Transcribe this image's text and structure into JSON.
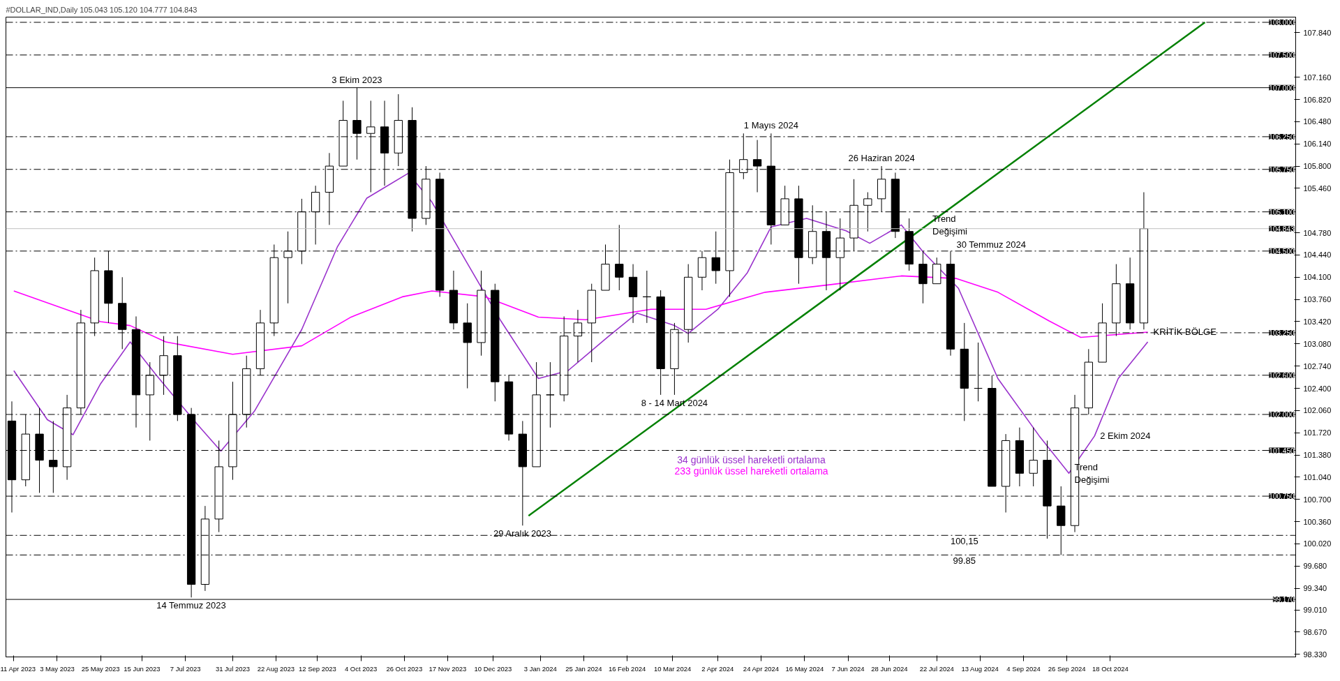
{
  "chart_data": {
    "type": "candlestick",
    "title": "#DOLLAR_IND,Daily  105.043 105.120 104.777 104.843",
    "xlim": [
      "2023-04-07",
      "2025-01-20"
    ],
    "ylim": [
      98.29,
      108.08
    ],
    "xticks": [
      {
        "value": "2023-04-11",
        "label": "11 Apr 2023"
      },
      {
        "value": "2023-05-03",
        "label": "3 May 2023"
      },
      {
        "value": "2023-05-25",
        "label": "25 May 2023"
      },
      {
        "value": "2023-06-15",
        "label": "15 Jun 2023"
      },
      {
        "value": "2023-07-07",
        "label": "7 Jul 2023"
      },
      {
        "value": "2023-07-31",
        "label": "31 Jul 2023"
      },
      {
        "value": "2023-08-22",
        "label": "22 Aug 2023"
      },
      {
        "value": "2023-09-12",
        "label": "12 Sep 2023"
      },
      {
        "value": "2023-10-04",
        "label": "4 Oct 2023"
      },
      {
        "value": "2023-10-26",
        "label": "26 Oct 2023"
      },
      {
        "value": "2023-11-17",
        "label": "17 Nov 2023"
      },
      {
        "value": "2023-12-10",
        "label": "10 Dec 2023"
      },
      {
        "value": "2024-01-03",
        "label": "3 Jan 2024"
      },
      {
        "value": "2024-01-25",
        "label": "25 Jan 2024"
      },
      {
        "value": "2024-02-16",
        "label": "16 Feb 2024"
      },
      {
        "value": "2024-03-10",
        "label": "10 Mar 2024"
      },
      {
        "value": "2024-04-02",
        "label": "2 Apr 2024"
      },
      {
        "value": "2024-04-24",
        "label": "24 Apr 2024"
      },
      {
        "value": "2024-05-16",
        "label": "16 May 2024"
      },
      {
        "value": "2024-06-07",
        "label": "7 Jun 2024"
      },
      {
        "value": "2024-06-28",
        "label": "28 Jun 2024"
      },
      {
        "value": "2024-07-22",
        "label": "22 Jul 2024"
      },
      {
        "value": "2024-08-13",
        "label": "13 Aug 2024"
      },
      {
        "value": "2024-09-04",
        "label": "4 Sep 2024"
      },
      {
        "value": "2024-09-26",
        "label": "26 Sep 2024"
      },
      {
        "value": "2024-10-18",
        "label": "18 Oct 2024"
      }
    ],
    "yticks": [
      {
        "value": 98.33,
        "label": "98.330"
      },
      {
        "value": 98.67,
        "label": "98.670"
      },
      {
        "value": 99.01,
        "label": "99.010"
      },
      {
        "value": 99.34,
        "label": "99.340"
      },
      {
        "value": 99.68,
        "label": "99.680"
      },
      {
        "value": 100.02,
        "label": "100.020"
      },
      {
        "value": 100.36,
        "label": "100.360"
      },
      {
        "value": 100.7,
        "label": "100.700"
      },
      {
        "value": 101.04,
        "label": "101.040"
      },
      {
        "value": 101.38,
        "label": "101.380"
      },
      {
        "value": 101.72,
        "label": "101.720"
      },
      {
        "value": 102.06,
        "label": "102.060"
      },
      {
        "value": 102.4,
        "label": "102.400"
      },
      {
        "value": 102.74,
        "label": "102.740"
      },
      {
        "value": 103.08,
        "label": "103.080"
      },
      {
        "value": 103.42,
        "label": "103.420"
      },
      {
        "value": 103.76,
        "label": "103.760"
      },
      {
        "value": 104.1,
        "label": "104.100"
      },
      {
        "value": 104.44,
        "label": "104.440"
      },
      {
        "value": 104.78,
        "label": "104.780"
      },
      {
        "value": 105.46,
        "label": "105.460"
      },
      {
        "value": 105.8,
        "label": "105.800"
      },
      {
        "value": 106.14,
        "label": "106.140"
      },
      {
        "value": 106.48,
        "label": "106.480"
      },
      {
        "value": 106.82,
        "label": "106.820"
      },
      {
        "value": 107.16,
        "label": "107.160"
      },
      {
        "value": 107.84,
        "label": "107.840"
      }
    ],
    "grid": false,
    "marker": "none",
    "series": [
      {
        "color": "#000000",
        "x": [
          "2023-04-10",
          "2023-04-17",
          "2023-04-24",
          "2023-05-01",
          "2023-05-08",
          "2023-05-15",
          "2023-05-22",
          "2023-05-29",
          "2023-06-05",
          "2023-06-12",
          "2023-06-19",
          "2023-06-26",
          "2023-07-03",
          "2023-07-10",
          "2023-07-17",
          "2023-07-24",
          "2023-07-31",
          "2023-08-07",
          "2023-08-14",
          "2023-08-21",
          "2023-08-28",
          "2023-09-04",
          "2023-09-11",
          "2023-09-18",
          "2023-09-25",
          "2023-10-02",
          "2023-10-09",
          "2023-10-16",
          "2023-10-23",
          "2023-10-30",
          "2023-11-06",
          "2023-11-13",
          "2023-11-20",
          "2023-11-27",
          "2023-12-04",
          "2023-12-11",
          "2023-12-18",
          "2023-12-25",
          "2024-01-01",
          "2024-01-08",
          "2024-01-15",
          "2024-01-22",
          "2024-01-29",
          "2024-02-05",
          "2024-02-12",
          "2024-02-19",
          "2024-02-26",
          "2024-03-04",
          "2024-03-11",
          "2024-03-18",
          "2024-03-25",
          "2024-04-01",
          "2024-04-08",
          "2024-04-15",
          "2024-04-22",
          "2024-04-29",
          "2024-05-06",
          "2024-05-13",
          "2024-05-20",
          "2024-05-27",
          "2024-06-03",
          "2024-06-10",
          "2024-06-17",
          "2024-06-24",
          "2024-07-01",
          "2024-07-08",
          "2024-07-15",
          "2024-07-22",
          "2024-07-29",
          "2024-08-05",
          "2024-08-12",
          "2024-08-19",
          "2024-08-26",
          "2024-09-02",
          "2024-09-09",
          "2024-09-16",
          "2024-09-23",
          "2024-09-30",
          "2024-10-07",
          "2024-10-14",
          "2024-10-21",
          "2024-10-28",
          "2024-11-04"
        ],
        "ohlc": [
          [
            101.9,
            102.2,
            100.5,
            101.0
          ],
          [
            101.0,
            102.0,
            100.9,
            101.7
          ],
          [
            101.7,
            102.1,
            100.8,
            101.3
          ],
          [
            101.3,
            101.9,
            100.8,
            101.2
          ],
          [
            101.2,
            102.3,
            101.0,
            102.1
          ],
          [
            102.1,
            103.6,
            102.0,
            103.4
          ],
          [
            103.4,
            104.4,
            103.2,
            104.2
          ],
          [
            104.2,
            104.5,
            103.4,
            103.7
          ],
          [
            103.7,
            104.1,
            103.0,
            103.3
          ],
          [
            103.3,
            103.5,
            101.8,
            102.3
          ],
          [
            102.3,
            102.8,
            101.6,
            102.6
          ],
          [
            102.6,
            103.2,
            102.3,
            102.9
          ],
          [
            102.9,
            103.2,
            101.9,
            102.0
          ],
          [
            102.0,
            102.1,
            99.2,
            99.4
          ],
          [
            99.4,
            100.6,
            99.3,
            100.4
          ],
          [
            100.4,
            101.6,
            100.2,
            101.2
          ],
          [
            101.2,
            102.5,
            101.0,
            102.0
          ],
          [
            102.0,
            102.9,
            101.8,
            102.7
          ],
          [
            102.7,
            103.6,
            102.6,
            103.4
          ],
          [
            103.4,
            104.6,
            103.2,
            104.4
          ],
          [
            104.4,
            104.8,
            103.7,
            104.5
          ],
          [
            104.5,
            105.3,
            104.3,
            105.1
          ],
          [
            105.1,
            105.5,
            104.6,
            105.4
          ],
          [
            105.4,
            106.0,
            104.9,
            105.8
          ],
          [
            105.8,
            106.8,
            105.8,
            106.5
          ],
          [
            106.5,
            107.0,
            105.9,
            106.3
          ],
          [
            106.3,
            106.8,
            105.4,
            106.4
          ],
          [
            106.4,
            106.8,
            105.5,
            106.0
          ],
          [
            106.0,
            106.9,
            105.8,
            106.5
          ],
          [
            106.5,
            106.7,
            104.8,
            105.0
          ],
          [
            105.0,
            105.8,
            104.9,
            105.6
          ],
          [
            105.6,
            105.7,
            103.8,
            103.9
          ],
          [
            103.9,
            104.2,
            103.3,
            103.4
          ],
          [
            103.4,
            103.7,
            102.4,
            103.1
          ],
          [
            103.1,
            104.2,
            102.9,
            103.9
          ],
          [
            103.9,
            104.0,
            102.2,
            102.5
          ],
          [
            102.5,
            102.6,
            101.6,
            101.7
          ],
          [
            101.7,
            101.9,
            100.3,
            101.2
          ],
          [
            101.2,
            102.8,
            101.2,
            102.3
          ],
          [
            102.3,
            102.8,
            101.8,
            102.3
          ],
          [
            102.3,
            103.5,
            102.2,
            103.2
          ],
          [
            103.2,
            103.6,
            102.8,
            103.4
          ],
          [
            103.4,
            104.0,
            102.8,
            103.9
          ],
          [
            103.9,
            104.6,
            103.9,
            104.3
          ],
          [
            104.3,
            104.9,
            103.9,
            104.1
          ],
          [
            104.1,
            104.3,
            103.4,
            103.8
          ],
          [
            103.8,
            104.2,
            103.4,
            103.8
          ],
          [
            103.8,
            103.9,
            102.3,
            102.7
          ],
          [
            102.7,
            103.4,
            102.3,
            103.3
          ],
          [
            103.3,
            104.3,
            103.1,
            104.1
          ],
          [
            104.1,
            104.5,
            103.9,
            104.4
          ],
          [
            104.4,
            104.8,
            104.0,
            104.2
          ],
          [
            104.2,
            105.9,
            103.8,
            105.7
          ],
          [
            105.7,
            106.3,
            105.6,
            105.9
          ],
          [
            105.9,
            106.2,
            105.4,
            105.8
          ],
          [
            105.8,
            106.3,
            104.6,
            104.9
          ],
          [
            104.9,
            105.5,
            104.9,
            105.3
          ],
          [
            105.3,
            105.5,
            104.0,
            104.4
          ],
          [
            104.4,
            105.2,
            104.3,
            104.8
          ],
          [
            104.8,
            105.1,
            103.9,
            104.4
          ],
          [
            104.4,
            105.0,
            103.9,
            104.7
          ],
          [
            104.7,
            105.6,
            104.5,
            105.2
          ],
          [
            105.2,
            105.4,
            104.8,
            105.3
          ],
          [
            105.3,
            105.8,
            105.1,
            105.6
          ],
          [
            105.6,
            105.7,
            104.7,
            104.8
          ],
          [
            104.8,
            105.0,
            104.2,
            104.3
          ],
          [
            104.3,
            104.5,
            103.7,
            104.0
          ],
          [
            104.0,
            104.4,
            104.0,
            104.3
          ],
          [
            104.3,
            104.5,
            102.9,
            103.0
          ],
          [
            103.0,
            103.4,
            101.9,
            102.4
          ],
          [
            102.4,
            103.1,
            102.2,
            102.4
          ],
          [
            102.4,
            102.6,
            100.9,
            100.9
          ],
          [
            100.9,
            101.7,
            100.5,
            101.6
          ],
          [
            101.6,
            101.8,
            100.9,
            101.1
          ],
          [
            101.1,
            101.8,
            100.9,
            101.3
          ],
          [
            101.3,
            101.6,
            100.1,
            100.6
          ],
          [
            100.6,
            100.9,
            99.85,
            100.3
          ],
          [
            100.3,
            102.3,
            100.2,
            102.1
          ],
          [
            102.1,
            103.0,
            102.0,
            102.8
          ],
          [
            102.8,
            103.7,
            102.8,
            103.4
          ],
          [
            103.4,
            104.3,
            103.2,
            104.0
          ],
          [
            104.0,
            104.4,
            103.3,
            103.4
          ],
          [
            103.4,
            105.4,
            103.3,
            104.843
          ]
        ]
      },
      {
        "type": "line",
        "name": "34 günlük üssel hareketli ortalama",
        "color": "#9932cc",
        "x": [
          "2023-04-11",
          "2023-04-28",
          "2023-05-11",
          "2023-05-25",
          "2023-06-09",
          "2023-06-22",
          "2023-07-13",
          "2023-07-25",
          "2023-08-11",
          "2023-09-04",
          "2023-09-22",
          "2023-10-07",
          "2023-10-28",
          "2023-11-09",
          "2023-11-27",
          "2023-12-14",
          "2024-01-02",
          "2024-01-17",
          "2024-02-06",
          "2024-02-21",
          "2024-03-11",
          "2024-03-18",
          "2024-04-02",
          "2024-04-17",
          "2024-04-29",
          "2024-05-17",
          "2024-06-06",
          "2024-06-18",
          "2024-07-04",
          "2024-07-15",
          "2024-08-02",
          "2024-08-22",
          "2024-09-12",
          "2024-09-27",
          "2024-10-10",
          "2024-10-22",
          "2024-11-06"
        ],
        "values": [
          102.67,
          101.92,
          101.69,
          102.47,
          103.11,
          102.61,
          101.85,
          101.44,
          102.05,
          103.3,
          104.56,
          105.31,
          105.69,
          105.25,
          104.31,
          103.43,
          102.55,
          102.67,
          103.18,
          103.55,
          103.36,
          103.24,
          103.61,
          104.17,
          104.87,
          105.0,
          104.81,
          104.62,
          104.9,
          104.49,
          103.93,
          102.55,
          101.67,
          101.1,
          101.67,
          102.55,
          103.11
        ]
      },
      {
        "type": "line",
        "name": "233 günlük üssel hareketli ortalama",
        "color": "#ff00ff",
        "x": [
          "2023-04-11",
          "2023-05-25",
          "2023-06-09",
          "2023-06-27",
          "2023-07-31",
          "2023-09-04",
          "2023-09-29",
          "2023-10-25",
          "2023-11-09",
          "2023-12-06",
          "2024-01-02",
          "2024-01-26",
          "2024-02-28",
          "2024-03-27",
          "2024-04-26",
          "2024-05-30",
          "2024-07-04",
          "2024-08-01",
          "2024-08-22",
          "2024-09-17",
          "2024-10-03",
          "2024-11-06"
        ],
        "values": [
          103.89,
          103.42,
          103.36,
          103.11,
          102.92,
          103.05,
          103.49,
          103.8,
          103.89,
          103.8,
          103.49,
          103.45,
          103.61,
          103.61,
          103.87,
          103.99,
          104.12,
          104.08,
          103.87,
          103.43,
          103.18,
          103.26
        ]
      },
      {
        "type": "line",
        "color": "#008000",
        "x": [
          "2023-12-28",
          "2024-12-05"
        ],
        "values": [
          100.45,
          108.0
        ]
      }
    ],
    "ref_lines": [
      {
        "axis": "y",
        "value": 108.0,
        "label": "108.000",
        "color": "#000000",
        "line_style": "dashed"
      },
      {
        "axis": "y",
        "value": 107.5,
        "label": "107.500",
        "color": "#000000",
        "line_style": "dashed"
      },
      {
        "axis": "y",
        "value": 107.0,
        "label": "107.000",
        "color": "#000000",
        "line_style": "solid"
      },
      {
        "axis": "y",
        "value": 106.25,
        "label": "106.250",
        "color": "#000000",
        "line_style": "dashed"
      },
      {
        "axis": "y",
        "value": 105.75,
        "label": "105.750",
        "color": "#000000",
        "line_style": "dashed"
      },
      {
        "axis": "y",
        "value": 105.1,
        "label": "105.100",
        "color": "#000000",
        "line_style": "dashed"
      },
      {
        "axis": "y",
        "value": 104.843,
        "label": "104.843",
        "color": "#c0c0c0",
        "line_style": "solid"
      },
      {
        "axis": "y",
        "value": 104.5,
        "label": "104.500",
        "color": "#000000",
        "line_style": "dashed"
      },
      {
        "axis": "y",
        "value": 103.25,
        "label": "103.250",
        "color": "#000000",
        "line_style": "dashed"
      },
      {
        "axis": "y",
        "value": 102.6,
        "label": "102.600",
        "color": "#000000",
        "line_style": "dashed"
      },
      {
        "axis": "y",
        "value": 102.0,
        "label": "102.000",
        "color": "#000000",
        "line_style": "dashed"
      },
      {
        "axis": "y",
        "value": 101.45,
        "label": "101.450",
        "color": "#000000",
        "line_style": "dashed"
      },
      {
        "axis": "y",
        "value": 100.75,
        "label": "100.750",
        "color": "#000000",
        "line_style": "dashed"
      },
      {
        "axis": "y",
        "value": 100.15,
        "color": "#000000",
        "line_style": "dashed"
      },
      {
        "axis": "y",
        "value": 99.85,
        "color": "#000000",
        "line_style": "dashed"
      },
      {
        "axis": "y",
        "value": 99.17,
        "label": "99.170",
        "color": "#000000",
        "line_style": "solid"
      }
    ],
    "annotations": [
      {
        "text": "3 Ekim 2023",
        "x": "2023-10-02",
        "y": 107.0
      },
      {
        "text": "14 Temmuz 2023",
        "x": "2023-07-10",
        "y": 99.2
      },
      {
        "text": "29 Aralık 2023",
        "x": "2023-12-25",
        "y": 100.3
      },
      {
        "text": "8 - 14 Mart 2024",
        "x": "2024-03-11",
        "y": 102.3
      },
      {
        "text": "1 Mayıs 2024",
        "x": "2024-04-29",
        "y": 106.3
      },
      {
        "text": "26 Haziran 2024",
        "x": "2024-06-24",
        "y": 105.8
      },
      {
        "text": "30 Temmuz 2024",
        "x": "2024-08-01",
        "y": 104.5
      },
      {
        "text": "Trend Değişimi",
        "x": "2024-07-17",
        "y": 104.9
      },
      {
        "text": "2 Ekim 2024",
        "x": "2024-10-10",
        "y": 101.67
      },
      {
        "text": "Trend Değişimi",
        "x": "2024-09-27",
        "y": 101.1
      },
      {
        "text": "KRİTİK BÖLGE",
        "x": "2024-11-06",
        "y": 103.26
      },
      {
        "text": "100,15",
        "x": "2024-08-05",
        "y": 100.15
      },
      {
        "text": "99.85",
        "x": "2024-08-05",
        "y": 99.85
      }
    ]
  }
}
